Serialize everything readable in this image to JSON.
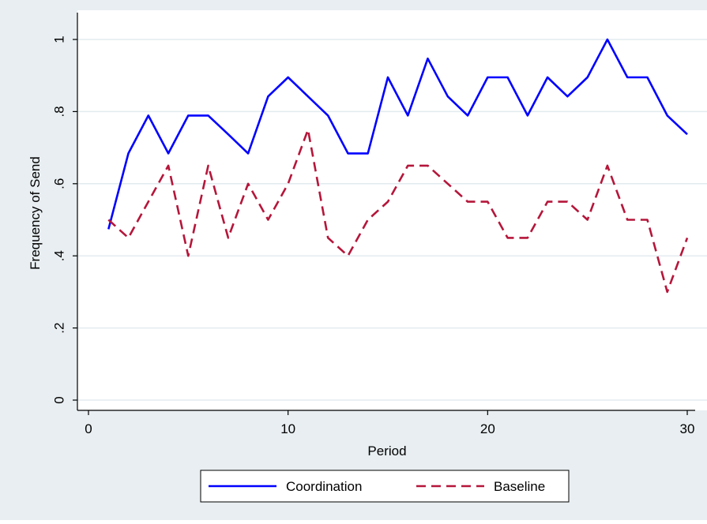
{
  "chart_data": {
    "type": "line",
    "title": "",
    "xlabel": "Period",
    "ylabel": "Frequency of Send",
    "xlim": [
      0,
      30
    ],
    "ylim": [
      0,
      1
    ],
    "x_ticks": [
      0,
      10,
      20,
      30
    ],
    "x_tick_labels": [
      "0",
      "10",
      "20",
      "30"
    ],
    "y_ticks": [
      0,
      0.2,
      0.4,
      0.6,
      0.8,
      1
    ],
    "y_tick_labels": [
      "0",
      ".2",
      ".4",
      ".6",
      ".8",
      "1"
    ],
    "grid": true,
    "legend_position": "bottom",
    "x": [
      1,
      2,
      3,
      4,
      5,
      6,
      7,
      8,
      9,
      10,
      11,
      12,
      13,
      14,
      15,
      16,
      17,
      18,
      19,
      20,
      21,
      22,
      23,
      24,
      25,
      26,
      27,
      28,
      29,
      30
    ],
    "series": [
      {
        "name": "Coordination",
        "color": "#0000ff",
        "style": "solid",
        "values": [
          0.474,
          0.684,
          0.789,
          0.684,
          0.789,
          0.789,
          0.737,
          0.684,
          0.842,
          0.895,
          0.842,
          0.789,
          0.684,
          0.684,
          0.895,
          0.789,
          0.947,
          0.842,
          0.789,
          0.895,
          0.895,
          0.789,
          0.895,
          0.842,
          0.895,
          1.0,
          0.895,
          0.895,
          0.789,
          0.737
        ]
      },
      {
        "name": "Baseline",
        "color": "#b5163a",
        "style": "dashed",
        "values": [
          0.5,
          0.45,
          0.55,
          0.65,
          0.4,
          0.65,
          0.45,
          0.6,
          0.5,
          0.6,
          0.75,
          0.45,
          0.4,
          0.5,
          0.55,
          0.65,
          0.65,
          0.6,
          0.55,
          0.55,
          0.45,
          0.45,
          0.55,
          0.55,
          0.5,
          0.65,
          0.5,
          0.5,
          0.3,
          0.45
        ]
      }
    ]
  }
}
